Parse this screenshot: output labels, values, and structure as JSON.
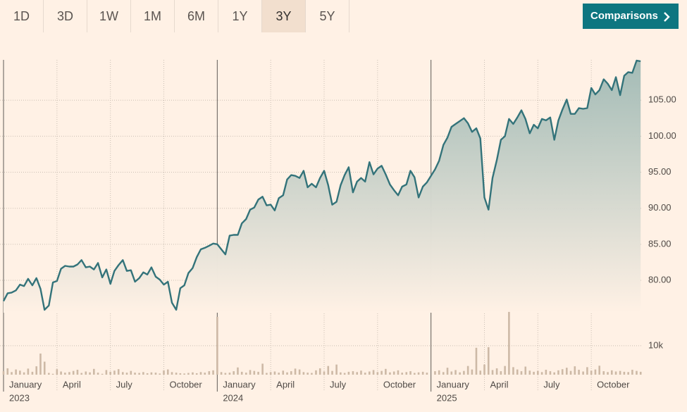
{
  "toolbar": {
    "ranges": [
      "1D",
      "3D",
      "1W",
      "1M",
      "6M",
      "1Y",
      "3Y",
      "5Y"
    ],
    "selected": "3Y",
    "comparisons": "Comparisons"
  },
  "chart_data": [
    {
      "type": "line",
      "color": "#33737a",
      "xlim": [
        2023,
        2026
      ],
      "xticks": [
        {
          "value": 2023,
          "label": "January"
        },
        {
          "value": 2023.25,
          "label": "April"
        },
        {
          "value": 2023.5,
          "label": "July"
        },
        {
          "value": 2023.75,
          "label": "October"
        },
        {
          "value": 2024,
          "label": "January"
        },
        {
          "value": 2024.25,
          "label": "April"
        },
        {
          "value": 2024.5,
          "label": "July"
        },
        {
          "value": 2024.75,
          "label": "October"
        },
        {
          "value": 2025,
          "label": "January"
        },
        {
          "value": 2025.25,
          "label": "April"
        },
        {
          "value": 2025.5,
          "label": "July"
        },
        {
          "value": 2025.75,
          "label": "October"
        }
      ],
      "year_labels": [
        2023,
        2024,
        2025
      ],
      "ylim": [
        75.5,
        110.6
      ],
      "yticks": [
        {
          "value": 80,
          "label": "80.00"
        },
        {
          "value": 85,
          "label": "85.00"
        },
        {
          "value": 90,
          "label": "90.00"
        },
        {
          "value": 95,
          "label": "95.00"
        },
        {
          "value": 100,
          "label": "100.00"
        },
        {
          "value": 105,
          "label": "105.00"
        }
      ],
      "x": [
        2023,
        2023.019,
        2023.038,
        2023.058,
        2023.077,
        2023.096,
        2023.115,
        2023.135,
        2023.154,
        2023.173,
        2023.192,
        2023.212,
        2023.231,
        2023.25,
        2023.269,
        2023.288,
        2023.308,
        2023.327,
        2023.346,
        2023.365,
        2023.385,
        2023.404,
        2023.423,
        2023.442,
        2023.462,
        2023.481,
        2023.5,
        2023.519,
        2023.538,
        2023.558,
        2023.577,
        2023.596,
        2023.615,
        2023.635,
        2023.654,
        2023.673,
        2023.692,
        2023.712,
        2023.731,
        2023.75,
        2023.769,
        2023.788,
        2023.808,
        2023.827,
        2023.846,
        2023.865,
        2023.885,
        2023.904,
        2023.923,
        2023.942,
        2023.962,
        2023.981,
        2024,
        2024.019,
        2024.038,
        2024.058,
        2024.077,
        2024.096,
        2024.115,
        2024.135,
        2024.154,
        2024.173,
        2024.192,
        2024.212,
        2024.231,
        2024.25,
        2024.269,
        2024.288,
        2024.308,
        2024.327,
        2024.346,
        2024.365,
        2024.385,
        2024.404,
        2024.423,
        2024.442,
        2024.462,
        2024.481,
        2024.5,
        2024.519,
        2024.538,
        2024.558,
        2024.577,
        2024.596,
        2024.615,
        2024.635,
        2024.654,
        2024.673,
        2024.692,
        2024.712,
        2024.731,
        2024.75,
        2024.769,
        2024.788,
        2024.808,
        2024.827,
        2024.846,
        2024.865,
        2024.885,
        2024.904,
        2024.923,
        2024.942,
        2024.962,
        2024.981,
        2025.019,
        2025.038,
        2025.058,
        2025.077,
        2025.096,
        2025.115,
        2025.135,
        2025.154,
        2025.173,
        2025.192,
        2025.212,
        2025.231,
        2025.25,
        2025.269,
        2025.288,
        2025.308,
        2025.327,
        2025.346,
        2025.365,
        2025.385,
        2025.404,
        2025.423,
        2025.442,
        2025.462,
        2025.481,
        2025.5,
        2025.519,
        2025.538,
        2025.558,
        2025.577,
        2025.596,
        2025.615,
        2025.635,
        2025.654,
        2025.673,
        2025.692,
        2025.712,
        2025.731,
        2025.75,
        2025.769,
        2025.788,
        2025.808,
        2025.827,
        2025.846,
        2025.865,
        2025.885,
        2025.904,
        2025.923,
        2025.942,
        2025.962,
        2025.981
      ],
      "values": [
        77.1,
        78.2,
        78.3,
        78.6,
        79.4,
        79.2,
        80.2,
        79.3,
        80.3,
        78.8,
        75.9,
        76.5,
        79.7,
        79.9,
        81.6,
        82.0,
        81.9,
        81.9,
        82.2,
        82.8,
        81.8,
        81.9,
        81.5,
        82.4,
        80.4,
        81.5,
        79.5,
        81.3,
        82.1,
        82.8,
        81.3,
        81.4,
        79.8,
        80.3,
        81.1,
        80.8,
        81.8,
        80.5,
        80.1,
        79.4,
        79.8,
        76.9,
        75.9,
        78.9,
        79.3,
        81.0,
        81.7,
        83.2,
        84.3,
        84.5,
        84.8,
        85.1,
        85.0,
        84.3,
        83.6,
        86.2,
        86.3,
        86.3,
        87.9,
        88.5,
        89.8,
        90.1,
        91.2,
        91.6,
        90.4,
        90.5,
        89.7,
        91.4,
        91.8,
        94.0,
        94.6,
        94.5,
        94.2,
        95.2,
        92.9,
        93.4,
        92.9,
        94.2,
        95.2,
        93.2,
        90.5,
        90.9,
        93.2,
        94.6,
        95.7,
        92.2,
        93.7,
        94.2,
        93.7,
        96.4,
        94.7,
        95.5,
        95.9,
        94.7,
        93.3,
        92.5,
        91.8,
        93.0,
        93.3,
        95.2,
        94.3,
        91.5,
        93.0,
        93.6,
        95.4,
        96.6,
        98.8,
        99.8,
        101.3,
        101.7,
        102.1,
        102.5,
        101.8,
        100.6,
        101.1,
        99.7,
        91.5,
        89.8,
        94.2,
        96.7,
        99.5,
        100.0,
        102.4,
        101.7,
        102.6,
        103.6,
        102.4,
        100.4,
        101.6,
        101.1,
        102.4,
        102.2,
        102.6,
        99.5,
        102.2,
        103.7,
        105.1,
        103.1,
        103.1,
        103.9,
        103.8,
        103.9,
        106.7,
        105.8,
        106.4,
        107.9,
        107.3,
        106.4,
        108.2,
        105.7,
        108.4,
        108.9,
        108.8,
        110.5,
        110.4
      ]
    },
    {
      "type": "bar",
      "color": "#cdb9a6",
      "ylim": [
        0,
        22400
      ],
      "yticks": [
        {
          "value": 10000,
          "label": "10k"
        }
      ],
      "values": [
        1200,
        2200,
        900,
        1800,
        1400,
        800,
        2100,
        1000,
        2900,
        7300,
        4500,
        600,
        300,
        1900,
        1100,
        700,
        900,
        1300,
        1700,
        600,
        1100,
        800,
        2000,
        700,
        300,
        1600,
        1000,
        1400,
        1900,
        900,
        700,
        1300,
        700,
        600,
        900,
        500,
        800,
        700,
        400,
        1500,
        1800,
        900,
        700,
        500,
        400,
        600,
        800,
        500,
        900,
        700,
        1200,
        1500,
        20000,
        900,
        600,
        700,
        1200,
        2500,
        1000,
        700,
        1600,
        1300,
        1000,
        3800,
        600,
        900,
        1100,
        700,
        1400,
        800,
        1200,
        2100,
        1800,
        900,
        700,
        600,
        1500,
        2200,
        1100,
        3000,
        1300,
        3500,
        800,
        600,
        1000,
        1200,
        900,
        1400,
        700,
        1100,
        1600,
        900,
        1300,
        2000,
        800,
        1100,
        1500,
        700,
        900,
        1200,
        600,
        800,
        1000,
        700,
        1200,
        1500,
        900,
        2400,
        1100,
        1600,
        800,
        1300,
        3000,
        1800,
        9300,
        1400,
        3500,
        9500,
        1600,
        2200,
        1200,
        3000,
        21700,
        2600,
        1800,
        1200,
        2800,
        1400,
        1000,
        1300,
        900,
        1700,
        1200,
        800,
        1500,
        1900,
        2400,
        1300,
        2900,
        1700,
        1100,
        2600,
        1400,
        1800,
        3100,
        1200,
        900,
        1500,
        1100,
        1300,
        1000,
        900,
        1700,
        1300,
        1000
      ]
    }
  ]
}
